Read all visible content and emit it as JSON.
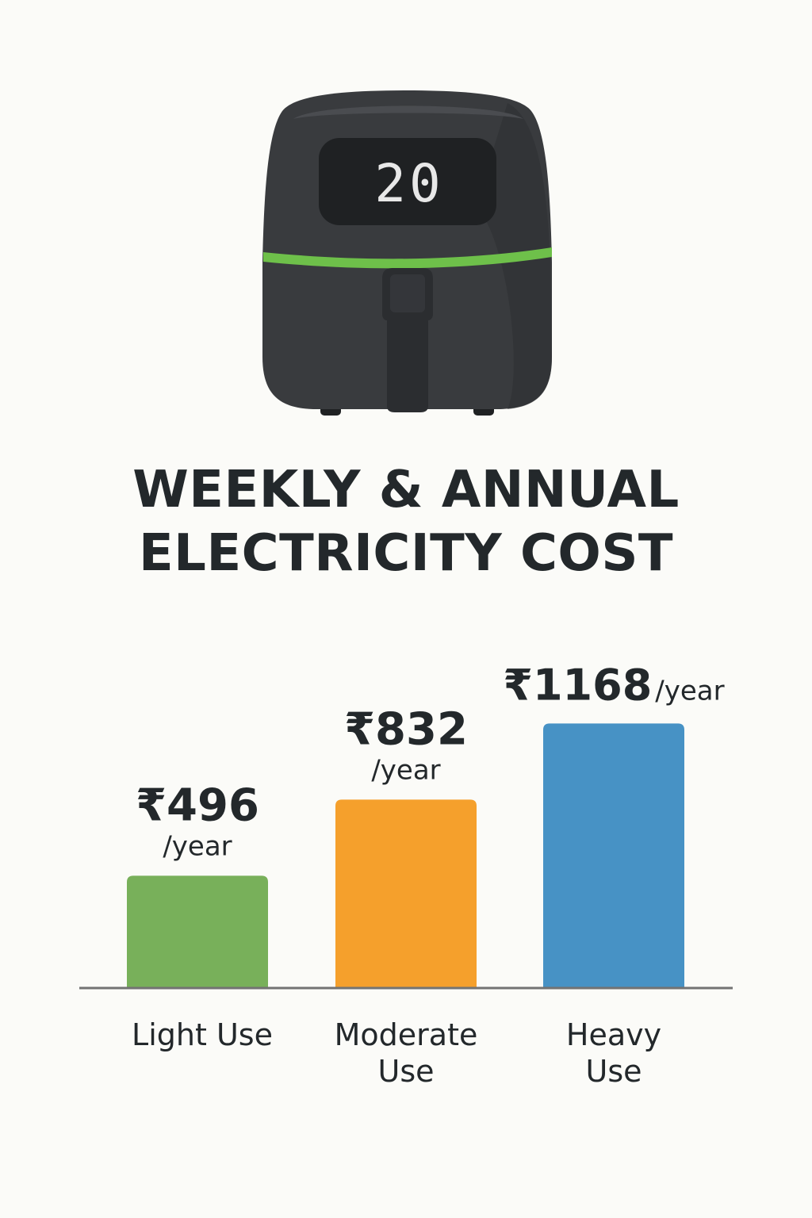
{
  "display": {
    "readout": "20"
  },
  "title": {
    "line1": "WEEKLY & ANNUAL",
    "line2": "ELECTRICITY COST"
  },
  "chart_data": {
    "type": "bar",
    "title": "WEEKLY & ANNUAL ELECTRICITY COST",
    "categories": [
      [
        "Light Use"
      ],
      [
        "Moderate",
        "Use"
      ],
      [
        "Heavy",
        "Use"
      ]
    ],
    "values": [
      496,
      832,
      1168
    ],
    "value_prefix": "₹",
    "value_unit": "/year",
    "colors": [
      "#78b05a",
      "#f5a02c",
      "#4792c5"
    ],
    "axis_color": "#737373",
    "ylim": [
      0,
      1300
    ],
    "grid": false,
    "legend": "none"
  },
  "colors": {
    "body": "#393b3e",
    "body_shadow": "#2d2f31",
    "display_bg": "#1f2123",
    "display_digits": "#e8e8e8",
    "accent_band": "#6ec04a",
    "text": "#23282b",
    "background": "#fbfbf8"
  },
  "icons": {
    "appliance": "air-fryer-icon"
  }
}
